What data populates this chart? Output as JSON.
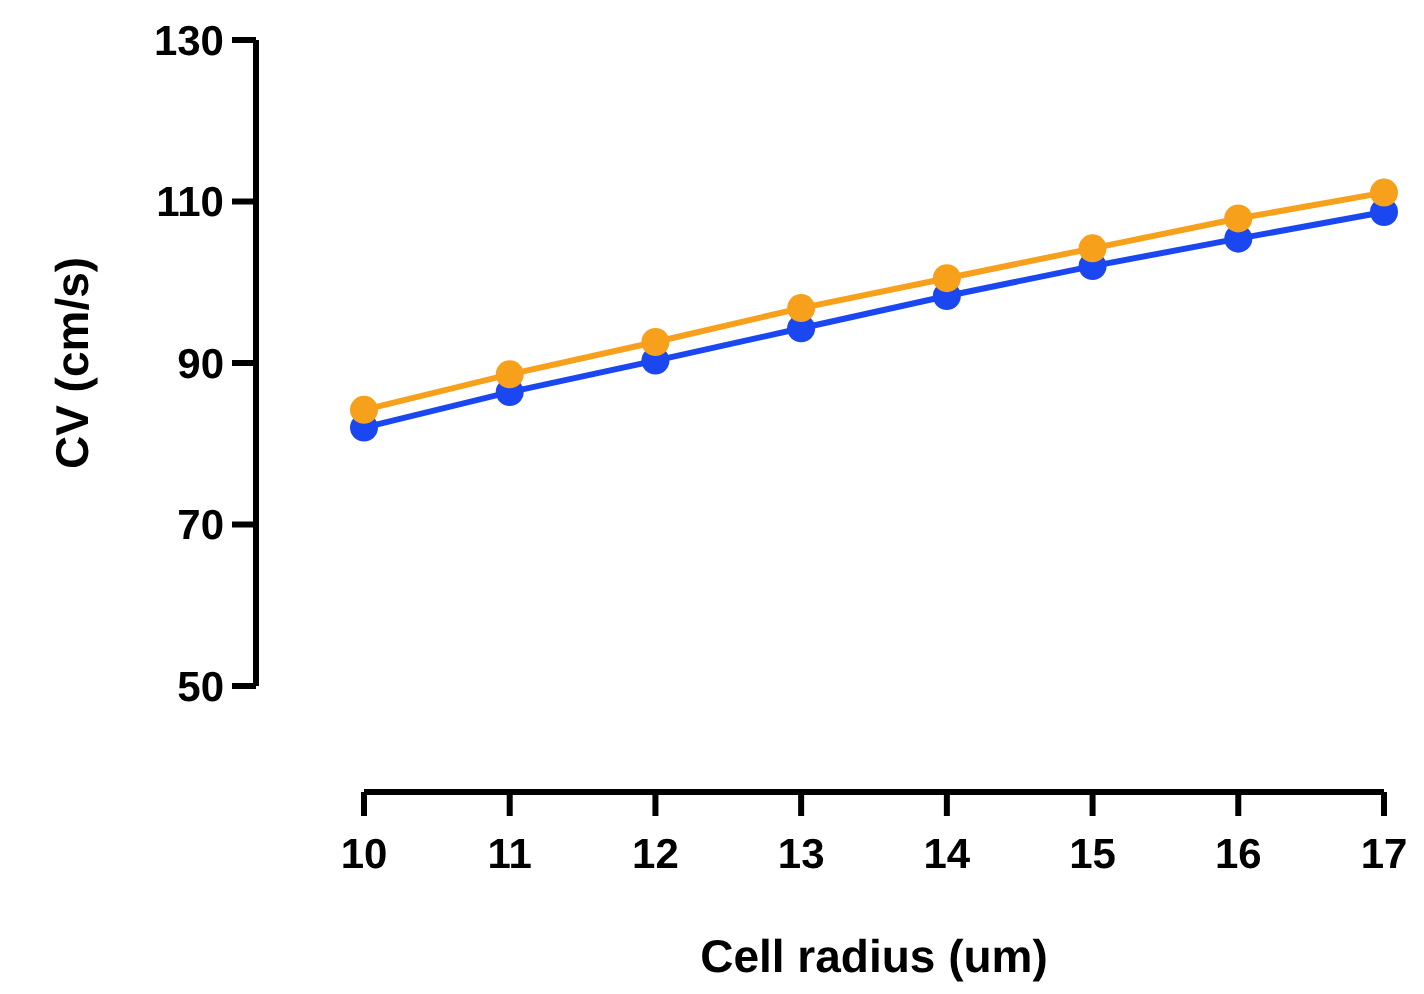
{
  "chart_data": {
    "type": "line",
    "xlabel": "Cell radius (um)",
    "ylabel": "CV (cm/s)",
    "x": [
      10,
      11,
      12,
      13,
      14,
      15,
      16,
      17
    ],
    "series": [
      {
        "color": "#1a47f0",
        "values": [
          82,
          86.4,
          90.3,
          94.3,
          98.3,
          102,
          105.4,
          108.7
        ]
      },
      {
        "color": "#f7a01c",
        "values": [
          84.2,
          88.6,
          92.6,
          96.8,
          100.5,
          104.2,
          107.9,
          111.1
        ]
      }
    ],
    "xlim": [
      10,
      17
    ],
    "xticks": [
      10,
      11,
      12,
      13,
      14,
      15,
      16,
      17
    ],
    "ylim": [
      50,
      130
    ],
    "yticks": [
      50,
      70,
      90,
      110,
      130
    ],
    "marker": "circle",
    "line_style": "solid"
  }
}
